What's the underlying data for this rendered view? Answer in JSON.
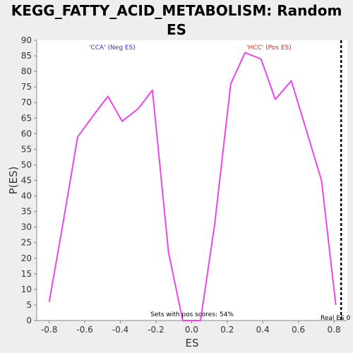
{
  "chart_data": {
    "type": "line",
    "title": "KEGG_FATTY_ACID_METABOLISM: Random ES distribution",
    "title_lines": [
      "KEGG_FATTY_ACID_METABOLISM: Random ES",
      "distribution"
    ],
    "xlabel": "ES",
    "ylabel": "P(ES)",
    "xlim": [
      -0.87,
      0.875
    ],
    "ylim": [
      0,
      90
    ],
    "xticks": [
      -0.8,
      -0.6,
      -0.4,
      -0.2,
      0.0,
      0.2,
      0.4,
      0.6,
      0.8
    ],
    "xtick_labels": [
      "-0.8",
      "-0.6",
      "-0.4",
      "-0.2",
      "0.0",
      "0.2",
      "0.4",
      "0.6",
      "0.8"
    ],
    "yticks": [
      0,
      5,
      10,
      15,
      20,
      25,
      30,
      35,
      40,
      45,
      50,
      55,
      60,
      65,
      70,
      75,
      80,
      85,
      90
    ],
    "grid": false,
    "series": [
      {
        "color": "#ee44ee",
        "x": [
          -0.8,
          -0.72,
          -0.64,
          -0.55,
          -0.47,
          -0.39,
          -0.3,
          -0.22,
          -0.13,
          -0.05,
          0.05,
          0.13,
          0.22,
          0.3,
          0.39,
          0.47,
          0.56,
          0.64,
          0.73,
          0.81
        ],
        "y": [
          6,
          32,
          59,
          66,
          72,
          64,
          68,
          74,
          22,
          0,
          0,
          31,
          76,
          86,
          84,
          71,
          77,
          62,
          45,
          5
        ]
      }
    ],
    "annotations": {
      "neg_label": "'CCA' (Neg ES)",
      "neg_color": "#3333cc",
      "pos_label": "'HCC' (Pos ES)",
      "pos_color": "#dd2222",
      "pos_scores": "Sets with pos scores: 54%",
      "real_es_label": "Real ES 0",
      "real_es_x": 0.84
    }
  }
}
